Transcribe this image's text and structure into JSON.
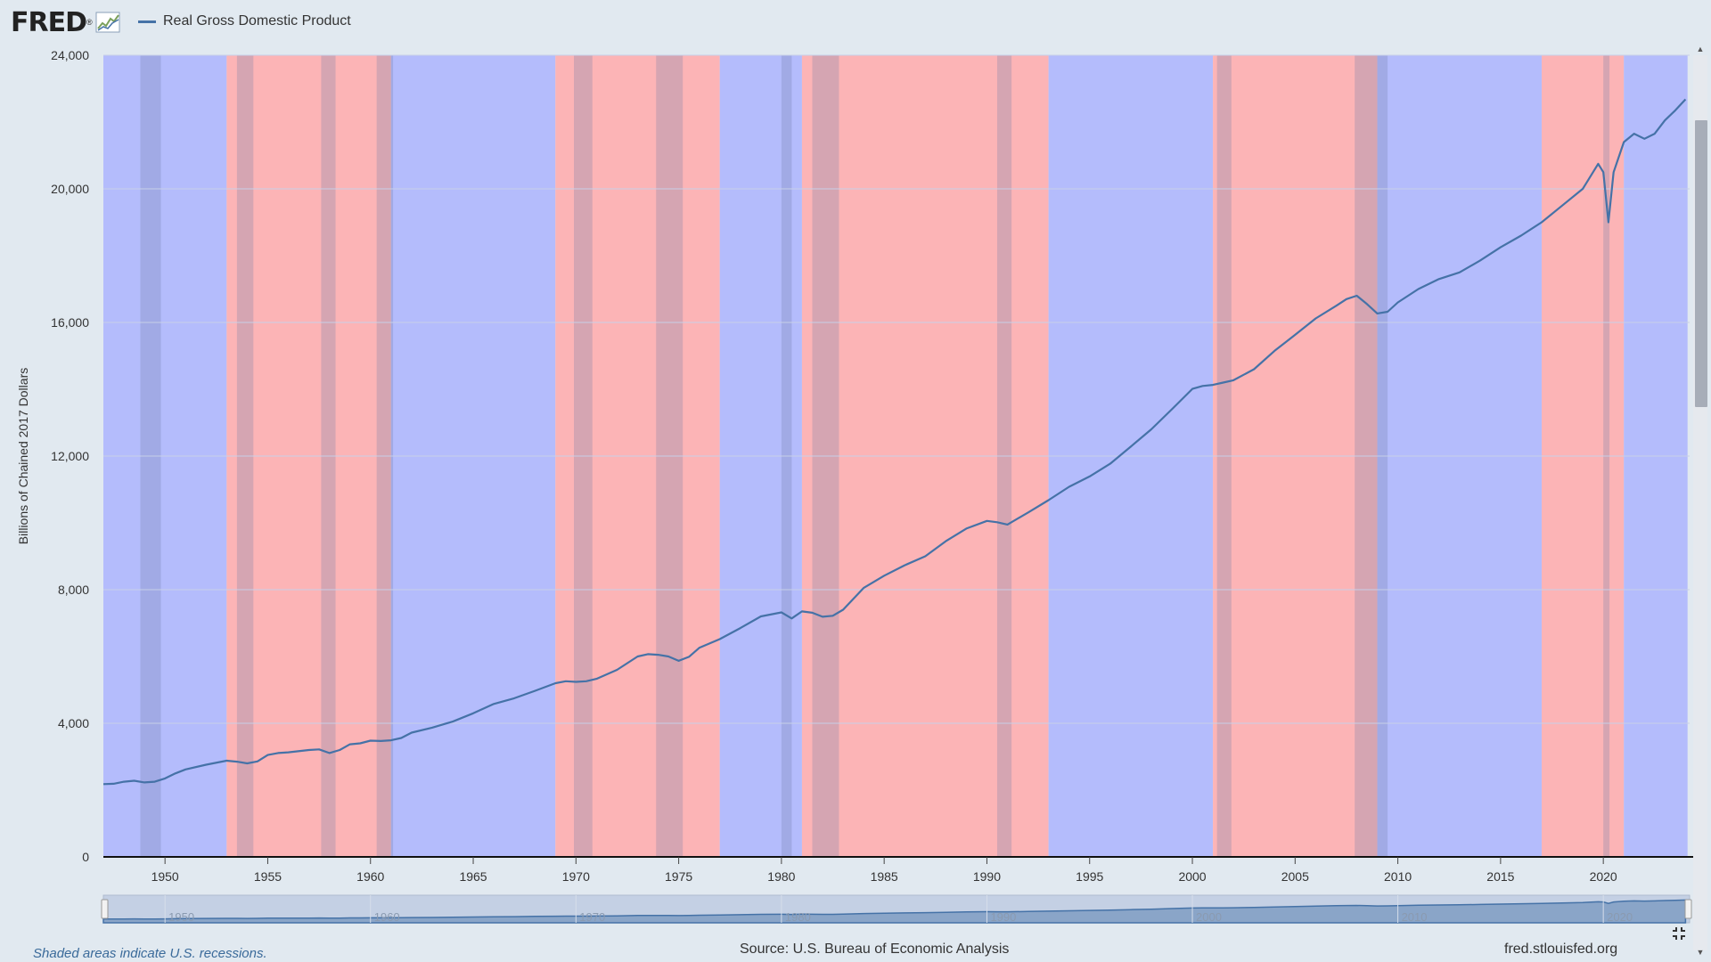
{
  "header": {
    "logo_text": "FRED",
    "legend_label": "Real Gross Domestic Product",
    "series_color": "#4572a7"
  },
  "colors": {
    "blue_band": "#b4bcfc",
    "red_band": "#fcb4b6",
    "recession_overlay": "#6e7fa8",
    "background": "#e1e9f0"
  },
  "chart_data": {
    "type": "line",
    "ylabel": "Billions of Chained 2017 Dollars",
    "xlabel": "",
    "ylim": [
      0,
      24000
    ],
    "xlim": [
      1947.0,
      2024.0
    ],
    "y_ticks": [
      0,
      4000,
      8000,
      12000,
      16000,
      20000,
      24000
    ],
    "y_tick_labels": [
      "0",
      "4,000",
      "8,000",
      "12,000",
      "16,000",
      "20,000",
      "24,000"
    ],
    "x_ticks": [
      1950,
      1955,
      1960,
      1965,
      1970,
      1975,
      1980,
      1985,
      1990,
      1995,
      2000,
      2005,
      2010,
      2015,
      2020
    ],
    "x_tick_labels": [
      "1950",
      "1955",
      "1960",
      "1965",
      "1970",
      "1975",
      "1980",
      "1985",
      "1990",
      "1995",
      "2000",
      "2005",
      "2010",
      "2015",
      "2020"
    ],
    "grid": true,
    "legend_position": "top-left",
    "series": [
      {
        "name": "Real Gross Domestic Product",
        "x": [
          1947.0,
          1947.5,
          1948.0,
          1948.5,
          1949.0,
          1949.5,
          1950.0,
          1950.5,
          1951.0,
          1952.0,
          1953.0,
          1953.5,
          1954.0,
          1954.5,
          1955.0,
          1955.5,
          1956.0,
          1957.0,
          1957.5,
          1958.0,
          1958.5,
          1959.0,
          1959.5,
          1960.0,
          1960.5,
          1961.0,
          1961.5,
          1962.0,
          1963.0,
          1964.0,
          1965.0,
          1966.0,
          1967.0,
          1968.0,
          1969.0,
          1969.5,
          1970.0,
          1970.5,
          1971.0,
          1972.0,
          1973.0,
          1973.5,
          1974.0,
          1974.5,
          1975.0,
          1975.5,
          1976.0,
          1977.0,
          1978.0,
          1979.0,
          1980.0,
          1980.5,
          1981.0,
          1981.5,
          1982.0,
          1982.5,
          1983.0,
          1984.0,
          1985.0,
          1986.0,
          1987.0,
          1988.0,
          1989.0,
          1990.0,
          1990.5,
          1991.0,
          1992.0,
          1993.0,
          1994.0,
          1995.0,
          1996.0,
          1997.0,
          1998.0,
          1999.0,
          2000.0,
          2000.5,
          2001.0,
          2001.5,
          2002.0,
          2003.0,
          2004.0,
          2005.0,
          2006.0,
          2007.0,
          2007.5,
          2008.0,
          2008.5,
          2009.0,
          2009.5,
          2010.0,
          2011.0,
          2012.0,
          2013.0,
          2014.0,
          2015.0,
          2016.0,
          2017.0,
          2018.0,
          2019.0,
          2019.75,
          2020.0,
          2020.25,
          2020.5,
          2021.0,
          2021.5,
          2022.0,
          2022.5,
          2023.0,
          2023.5,
          2024.0
        ],
        "values": [
          2180,
          2190,
          2250,
          2280,
          2230,
          2250,
          2350,
          2500,
          2620,
          2760,
          2880,
          2850,
          2800,
          2860,
          3050,
          3110,
          3130,
          3200,
          3220,
          3110,
          3200,
          3370,
          3400,
          3480,
          3470,
          3490,
          3560,
          3720,
          3870,
          4050,
          4300,
          4580,
          4750,
          4970,
          5200,
          5260,
          5240,
          5260,
          5330,
          5600,
          6000,
          6070,
          6050,
          6000,
          5870,
          5990,
          6260,
          6520,
          6850,
          7200,
          7320,
          7140,
          7350,
          7310,
          7190,
          7220,
          7400,
          8050,
          8420,
          8730,
          9000,
          9450,
          9830,
          10060,
          10020,
          9950,
          10310,
          10680,
          11080,
          11390,
          11770,
          12280,
          12800,
          13400,
          14010,
          14100,
          14130,
          14200,
          14270,
          14600,
          15150,
          15630,
          16120,
          16500,
          16700,
          16800,
          16550,
          16270,
          16320,
          16600,
          17000,
          17300,
          17500,
          17850,
          18250,
          18600,
          19000,
          19500,
          20000,
          20750,
          20500,
          19000,
          20500,
          21400,
          21650,
          21500,
          21650,
          22050,
          22350,
          22680
        ]
      }
    ],
    "navigator_tick_labels": [
      "1950",
      "1960",
      "1970",
      "1980",
      "1990",
      "2000",
      "2010",
      "2020"
    ],
    "navigator_ticks": [
      1950,
      1960,
      1970,
      1980,
      1990,
      2000,
      2010,
      2020
    ]
  },
  "bands": [
    {
      "color": "blue",
      "from": 1947.0,
      "to": 1953.0
    },
    {
      "color": "red",
      "from": 1953.0,
      "to": 1961.0
    },
    {
      "color": "blue",
      "from": 1961.0,
      "to": 1969.0
    },
    {
      "color": "red",
      "from": 1969.0,
      "to": 1977.0
    },
    {
      "color": "blue",
      "from": 1977.0,
      "to": 1981.0
    },
    {
      "color": "red",
      "from": 1981.0,
      "to": 1993.0
    },
    {
      "color": "blue",
      "from": 1993.0,
      "to": 2001.0
    },
    {
      "color": "red",
      "from": 2001.0,
      "to": 2009.0
    },
    {
      "color": "blue",
      "from": 2009.0,
      "to": 2017.0
    },
    {
      "color": "red",
      "from": 2017.0,
      "to": 2021.0
    },
    {
      "color": "blue",
      "from": 2021.0,
      "to": 2024.1
    }
  ],
  "recessions": [
    {
      "from": 1948.8,
      "to": 1949.8
    },
    {
      "from": 1953.5,
      "to": 1954.3
    },
    {
      "from": 1957.6,
      "to": 1958.3
    },
    {
      "from": 1960.3,
      "to": 1961.1
    },
    {
      "from": 1969.9,
      "to": 1970.8
    },
    {
      "from": 1973.9,
      "to": 1975.2
    },
    {
      "from": 1980.0,
      "to": 1980.5
    },
    {
      "from": 1981.5,
      "to": 1982.8
    },
    {
      "from": 1990.5,
      "to": 1991.2
    },
    {
      "from": 2001.2,
      "to": 2001.9
    },
    {
      "from": 2007.9,
      "to": 2009.5
    },
    {
      "from": 2020.0,
      "to": 2020.3
    }
  ],
  "footer": {
    "recession_note": "Shaded areas indicate U.S. recessions.",
    "source": "Source: U.S. Bureau of Economic Analysis",
    "site": "fred.stlouisfed.org"
  }
}
